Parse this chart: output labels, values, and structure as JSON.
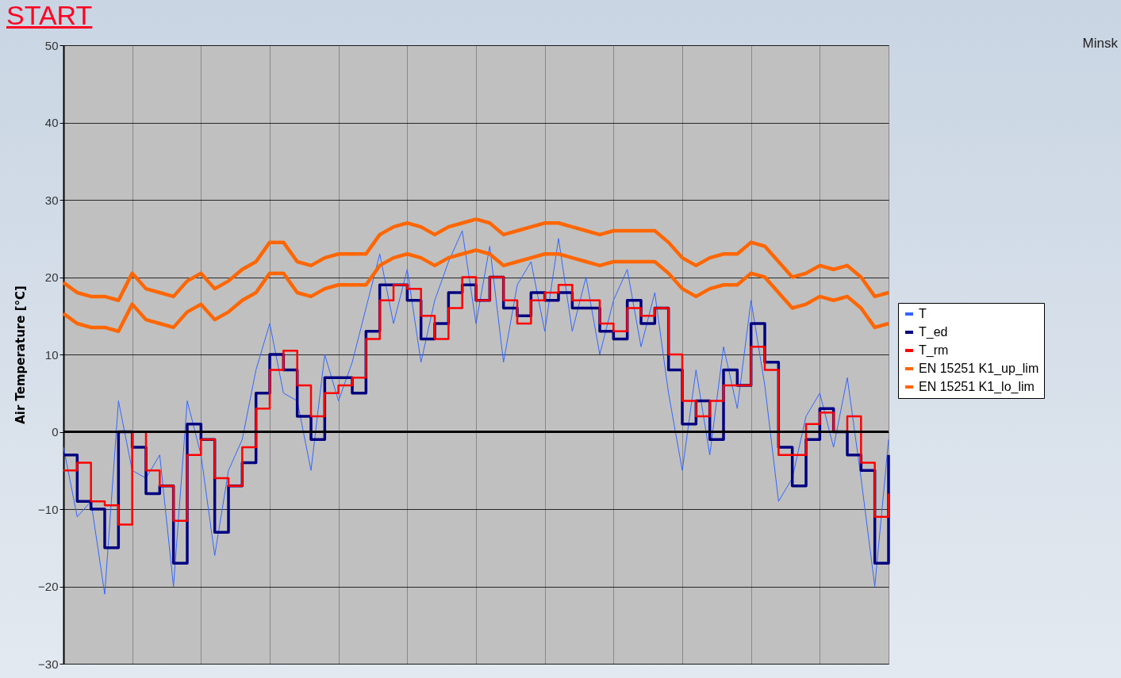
{
  "chart_data": {
    "type": "line",
    "ylabel": "Air Temperature [°C]",
    "annotations": [
      "START",
      "Minsk"
    ],
    "categories": [
      null,
      null,
      null,
      null,
      null,
      null,
      null,
      null,
      null,
      null,
      null,
      null,
      null,
      null,
      null,
      null,
      null,
      null,
      null,
      null,
      null,
      null,
      null,
      null,
      null,
      null,
      null,
      null,
      null,
      null,
      null,
      null,
      null,
      null,
      null,
      null,
      null,
      null,
      null,
      null,
      null,
      null,
      null,
      null,
      null,
      null,
      null,
      null,
      null,
      null,
      null,
      null,
      null,
      null,
      null,
      null,
      null,
      null,
      null,
      null,
      null
    ],
    "ylim": [
      -30,
      50
    ],
    "yticks": [
      -30,
      -20,
      -10,
      0,
      10,
      20,
      30,
      40,
      50
    ],
    "grid": true,
    "legend": "right",
    "tick_labels": "y",
    "ref_lines": [
      {
        "axis": "y",
        "value": 0,
        "color": "#000000"
      }
    ],
    "series": [
      {
        "name": "T",
        "color": "#3366ff",
        "values": [
          -2,
          -11,
          -9,
          -21,
          4,
          -5,
          -6,
          -3,
          -20,
          4,
          -3,
          -16,
          -5,
          -1,
          8,
          14,
          5,
          4,
          -5,
          10,
          4,
          9,
          16,
          23,
          14,
          21,
          9,
          17,
          22,
          26,
          14,
          24,
          9,
          19,
          22,
          13,
          25,
          13,
          20,
          10,
          17,
          21,
          11,
          18,
          5,
          -5,
          8,
          -3,
          11,
          3,
          17,
          6,
          -9,
          -6,
          2,
          5,
          -2,
          7,
          -6,
          -20,
          -1
        ]
      },
      {
        "name": "T_ed",
        "type": "step",
        "color": "#000080",
        "values": [
          -3,
          -9,
          -10,
          -15,
          0,
          -2,
          -8,
          -7,
          -17,
          1,
          -1,
          -13,
          -7,
          -4,
          5,
          10,
          8,
          2,
          -1,
          7,
          7,
          5,
          13,
          19,
          19,
          17,
          12,
          14,
          18,
          19,
          17,
          20,
          16,
          15,
          18,
          17,
          18,
          16,
          16,
          13,
          12,
          17,
          14,
          16,
          8,
          1,
          4,
          -1,
          8,
          6,
          14,
          9,
          -2,
          -7,
          -1,
          3,
          0,
          -3,
          -5,
          -17,
          -3
        ]
      },
      {
        "name": "T_rm",
        "type": "step",
        "color": "#ff0000",
        "values": [
          -5,
          -4,
          -9,
          -9.5,
          -12,
          0,
          -5,
          -7,
          -11.5,
          -3,
          -1,
          -6,
          -7,
          -2,
          3,
          8,
          10.5,
          6,
          2,
          5,
          6,
          7,
          12,
          17,
          19,
          18.5,
          15,
          12,
          16,
          20,
          17,
          20,
          17,
          14,
          17,
          18,
          19,
          17,
          17,
          14,
          13,
          16,
          15,
          16,
          10,
          4,
          2,
          4,
          6,
          6,
          11,
          8,
          -3,
          -3,
          1,
          2.5,
          0,
          2,
          -4,
          -11,
          -8
        ]
      },
      {
        "name": "EN 15251 K1_up_lim",
        "color": "#ff6600",
        "values": [
          19.3,
          18,
          17.5,
          17.5,
          17,
          20.5,
          18.5,
          18,
          17.5,
          19.5,
          20.5,
          18.5,
          19.5,
          21,
          22,
          24.5,
          24.5,
          22,
          21.5,
          22.5,
          23,
          23,
          23,
          25.5,
          26.5,
          27,
          26.5,
          25.5,
          26.5,
          27,
          27.5,
          27,
          25.5,
          26,
          26.5,
          27,
          27,
          26.5,
          26,
          25.5,
          26,
          26,
          26,
          26,
          24.5,
          22.5,
          21.5,
          22.5,
          23,
          23,
          24.5,
          24,
          22,
          20,
          20.5,
          21.5,
          21,
          21.5,
          20,
          17.5,
          18
        ]
      },
      {
        "name": "EN 15251 K1_lo_lim",
        "color": "#ff6600",
        "values": [
          15.3,
          14,
          13.5,
          13.5,
          13,
          16.5,
          14.5,
          14,
          13.5,
          15.5,
          16.5,
          14.5,
          15.5,
          17,
          18,
          20.5,
          20.5,
          18,
          17.5,
          18.5,
          19,
          19,
          19,
          21.5,
          22.5,
          23,
          22.5,
          21.5,
          22.5,
          23,
          23.5,
          23,
          21.5,
          22,
          22.5,
          23,
          23,
          22.5,
          22,
          21.5,
          22,
          22,
          22,
          22,
          20.5,
          18.5,
          17.5,
          18.5,
          19,
          19,
          20.5,
          20,
          18,
          16,
          16.5,
          17.5,
          17,
          17.5,
          16,
          13.5,
          14
        ]
      }
    ]
  }
}
